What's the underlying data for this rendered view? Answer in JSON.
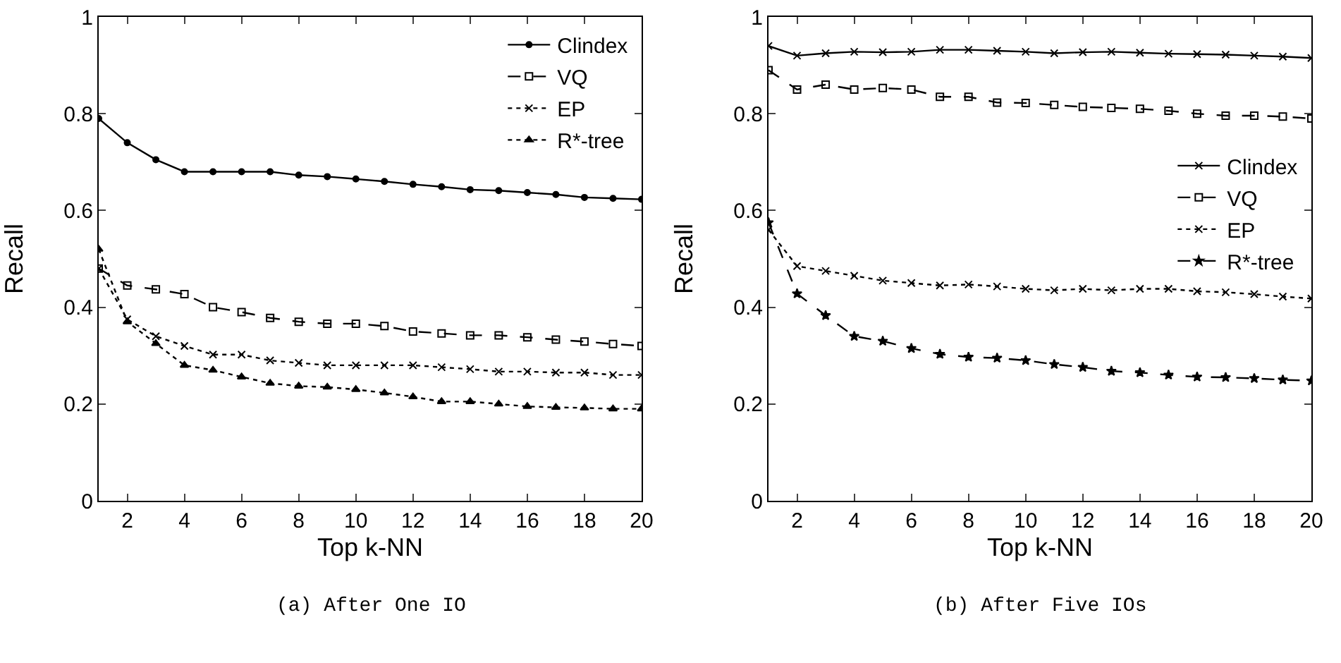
{
  "chart_data": [
    {
      "type": "line",
      "title": "(a) After One IO",
      "xlabel": "Top k-NN",
      "ylabel": "Recall",
      "x": [
        1,
        2,
        3,
        4,
        5,
        6,
        7,
        8,
        9,
        10,
        11,
        12,
        13,
        14,
        15,
        16,
        17,
        18,
        19,
        20
      ],
      "xlim": [
        1,
        20
      ],
      "xticks": [
        2,
        4,
        6,
        8,
        10,
        12,
        14,
        16,
        18,
        20
      ],
      "ylim": [
        0,
        1
      ],
      "yticks": [
        0,
        0.2,
        0.4,
        0.6,
        0.8,
        1
      ],
      "grid": false,
      "legend": "top right",
      "series": [
        {
          "name": "Clindex",
          "color": "#000000",
          "marker": "circle",
          "line_style": "solid",
          "values": [
            0.79,
            0.74,
            0.705,
            0.68,
            0.68,
            0.68,
            0.68,
            0.673,
            0.67,
            0.665,
            0.66,
            0.654,
            0.649,
            0.643,
            0.641,
            0.637,
            0.633,
            0.627,
            0.625,
            0.623
          ]
        },
        {
          "name": "VQ",
          "color": "#000000",
          "marker": "square",
          "line_style": "dashed",
          "values": [
            0.48,
            0.445,
            0.437,
            0.427,
            0.4,
            0.39,
            0.378,
            0.37,
            0.366,
            0.366,
            0.361,
            0.35,
            0.346,
            0.342,
            0.342,
            0.338,
            0.333,
            0.329,
            0.324,
            0.32
          ]
        },
        {
          "name": "EP",
          "color": "#000000",
          "marker": "cross",
          "line_style": "dotted",
          "values": [
            0.48,
            0.375,
            0.34,
            0.32,
            0.302,
            0.302,
            0.29,
            0.285,
            0.28,
            0.28,
            0.28,
            0.28,
            0.276,
            0.272,
            0.267,
            0.267,
            0.265,
            0.265,
            0.26,
            0.26
          ]
        },
        {
          "name": "R*-tree",
          "color": "#000000",
          "marker": "triangle",
          "line_style": "dotted",
          "values": [
            0.52,
            0.37,
            0.325,
            0.28,
            0.27,
            0.256,
            0.243,
            0.237,
            0.235,
            0.23,
            0.223,
            0.215,
            0.205,
            0.205,
            0.2,
            0.195,
            0.193,
            0.192,
            0.19,
            0.19
          ]
        }
      ]
    },
    {
      "type": "line",
      "title": "(b) After Five IOs",
      "xlabel": "Top k-NN",
      "ylabel": "Recall",
      "x": [
        1,
        2,
        3,
        4,
        5,
        6,
        7,
        8,
        9,
        10,
        11,
        12,
        13,
        14,
        15,
        16,
        17,
        18,
        19,
        20
      ],
      "xlim": [
        1,
        20
      ],
      "xticks": [
        2,
        4,
        6,
        8,
        10,
        12,
        14,
        16,
        18,
        20
      ],
      "ylim": [
        0,
        1
      ],
      "yticks": [
        0,
        0.2,
        0.4,
        0.6,
        0.8,
        1
      ],
      "grid": false,
      "legend": "right",
      "series": [
        {
          "name": "Clindex",
          "color": "#000000",
          "marker": "cross",
          "line_style": "solid",
          "values": [
            0.94,
            0.92,
            0.925,
            0.928,
            0.927,
            0.928,
            0.932,
            0.932,
            0.93,
            0.928,
            0.925,
            0.927,
            0.928,
            0.926,
            0.924,
            0.923,
            0.922,
            0.92,
            0.918,
            0.915
          ]
        },
        {
          "name": "VQ",
          "color": "#000000",
          "marker": "square",
          "line_style": "dashed",
          "values": [
            0.89,
            0.85,
            0.86,
            0.85,
            0.853,
            0.85,
            0.835,
            0.835,
            0.823,
            0.822,
            0.818,
            0.814,
            0.812,
            0.81,
            0.806,
            0.8,
            0.796,
            0.796,
            0.794,
            0.79
          ]
        },
        {
          "name": "EP",
          "color": "#000000",
          "marker": "cross",
          "line_style": "dotted",
          "values": [
            0.56,
            0.485,
            0.475,
            0.465,
            0.455,
            0.45,
            0.445,
            0.447,
            0.443,
            0.438,
            0.435,
            0.438,
            0.435,
            0.438,
            0.438,
            0.433,
            0.431,
            0.427,
            0.422,
            0.418
          ]
        },
        {
          "name": "R*-tree",
          "color": "#000000",
          "marker": "star",
          "line_style": "dashed",
          "values": [
            0.575,
            0.428,
            0.383,
            0.34,
            0.33,
            0.315,
            0.303,
            0.297,
            0.295,
            0.29,
            0.282,
            0.276,
            0.268,
            0.265,
            0.26,
            0.256,
            0.255,
            0.253,
            0.25,
            0.248
          ]
        }
      ]
    }
  ]
}
